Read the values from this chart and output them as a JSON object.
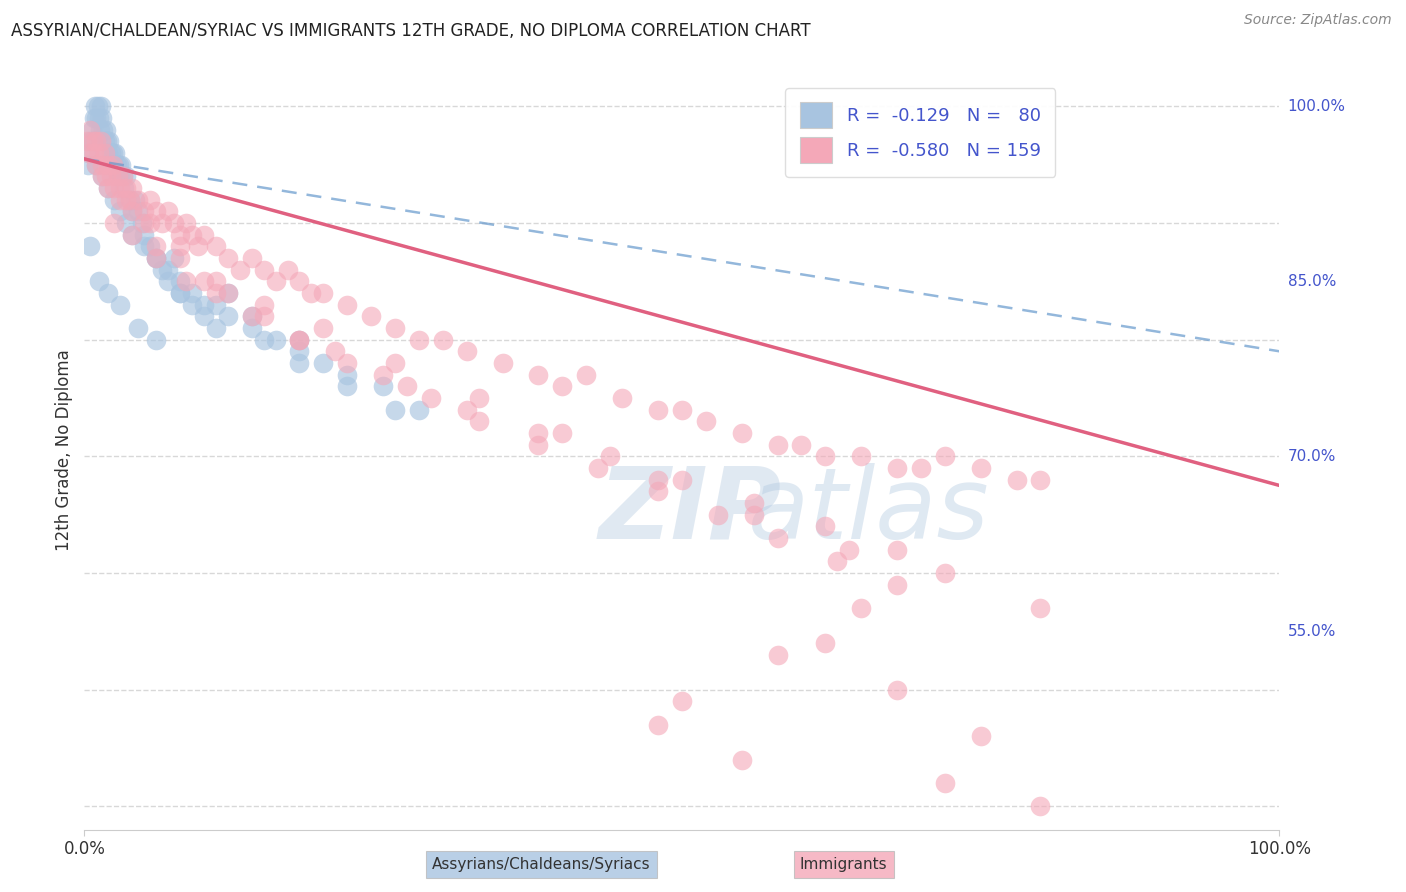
{
  "title": "ASSYRIAN/CHALDEAN/SYRIAC VS IMMIGRANTS 12TH GRADE, NO DIPLOMA CORRELATION CHART",
  "source": "Source: ZipAtlas.com",
  "ylabel": "12th Grade, No Diploma",
  "ylabel_right_ticks": [
    100.0,
    85.0,
    70.0,
    55.0
  ],
  "legend_r1": "R =  -0.129",
  "legend_n1": "N =  80",
  "legend_r2": "R =  -0.580",
  "legend_n2": "N = 159",
  "blue_color": "#a8c4e0",
  "pink_color": "#f4a8b8",
  "trend_blue_color": "#6699cc",
  "trend_pink_color": "#e06080",
  "watermark_zip": "ZIP",
  "watermark_atlas": "atlas",
  "xlim": [
    0,
    100
  ],
  "ylim": [
    38,
    103
  ],
  "background_color": "#ffffff",
  "grid_color": "#d8d8d8",
  "label_color": "#4455cc",
  "blue_scatter_x": [
    0.3,
    0.5,
    0.6,
    0.8,
    0.9,
    1.0,
    1.1,
    1.2,
    1.3,
    1.4,
    1.5,
    1.6,
    1.7,
    1.8,
    1.9,
    2.0,
    2.1,
    2.2,
    2.3,
    2.4,
    2.5,
    2.6,
    2.7,
    2.8,
    2.9,
    3.0,
    3.1,
    3.2,
    3.3,
    3.5,
    3.8,
    4.0,
    4.2,
    4.5,
    4.8,
    5.0,
    5.5,
    6.0,
    6.5,
    7.0,
    7.5,
    8.0,
    9.0,
    10.0,
    11.0,
    12.0,
    14.0,
    16.0,
    18.0,
    20.0,
    22.0,
    25.0,
    28.0,
    0.4,
    0.7,
    1.0,
    1.5,
    2.0,
    2.5,
    3.0,
    3.5,
    4.0,
    5.0,
    6.0,
    7.0,
    8.0,
    9.0,
    10.0,
    12.0,
    15.0,
    18.0,
    22.0,
    26.0,
    0.5,
    1.2,
    2.0,
    3.0,
    4.5,
    6.0,
    8.0,
    11.0,
    14.0,
    18.0
  ],
  "blue_scatter_y": [
    95,
    97,
    98,
    99,
    100,
    99,
    100,
    99,
    98,
    100,
    99,
    98,
    97,
    98,
    97,
    96,
    97,
    96,
    95,
    96,
    95,
    96,
    95,
    94,
    95,
    94,
    95,
    94,
    93,
    94,
    92,
    91,
    92,
    91,
    90,
    89,
    88,
    87,
    86,
    85,
    87,
    84,
    83,
    82,
    81,
    84,
    82,
    80,
    79,
    78,
    77,
    76,
    74,
    96,
    97,
    95,
    94,
    93,
    92,
    91,
    90,
    89,
    88,
    87,
    86,
    85,
    84,
    83,
    82,
    80,
    78,
    76,
    74,
    88,
    85,
    84,
    83,
    81,
    80,
    84,
    83,
    81,
    80
  ],
  "pink_scatter_x": [
    0.2,
    0.4,
    0.5,
    0.7,
    0.8,
    1.0,
    1.2,
    1.4,
    1.5,
    1.7,
    1.8,
    2.0,
    2.2,
    2.4,
    2.5,
    2.8,
    3.0,
    3.2,
    3.5,
    3.8,
    4.0,
    4.5,
    5.0,
    5.5,
    6.0,
    6.5,
    7.0,
    7.5,
    8.0,
    8.5,
    9.0,
    9.5,
    10.0,
    11.0,
    12.0,
    13.0,
    14.0,
    15.0,
    16.0,
    17.0,
    18.0,
    19.0,
    20.0,
    22.0,
    24.0,
    26.0,
    28.0,
    30.0,
    32.0,
    35.0,
    38.0,
    40.0,
    42.0,
    45.0,
    48.0,
    50.0,
    52.0,
    55.0,
    58.0,
    60.0,
    62.0,
    65.0,
    68.0,
    70.0,
    72.0,
    75.0,
    78.0,
    80.0,
    1.0,
    2.0,
    3.0,
    4.0,
    5.0,
    6.0,
    8.0,
    10.0,
    12.0,
    15.0,
    18.0,
    21.0,
    25.0,
    29.0,
    33.0,
    38.0,
    43.0,
    48.0,
    53.0,
    58.0,
    63.0,
    68.0,
    2.5,
    4.0,
    6.0,
    8.5,
    11.0,
    14.0,
    18.0,
    22.0,
    27.0,
    32.0,
    38.0,
    44.0,
    50.0,
    56.0,
    62.0,
    68.0,
    1.5,
    3.5,
    5.5,
    8.0,
    11.0,
    15.0,
    20.0,
    26.0,
    33.0,
    40.0,
    48.0,
    56.0,
    64.0,
    72.0,
    80.0
  ],
  "pink_scatter_y": [
    97,
    96,
    98,
    97,
    96,
    97,
    96,
    97,
    95,
    96,
    94,
    95,
    94,
    95,
    93,
    94,
    93,
    94,
    93,
    92,
    93,
    92,
    91,
    92,
    91,
    90,
    91,
    90,
    89,
    90,
    89,
    88,
    89,
    88,
    87,
    86,
    87,
    86,
    85,
    86,
    85,
    84,
    84,
    83,
    82,
    81,
    80,
    80,
    79,
    78,
    77,
    76,
    77,
    75,
    74,
    74,
    73,
    72,
    71,
    71,
    70,
    70,
    69,
    69,
    70,
    69,
    68,
    68,
    95,
    93,
    92,
    91,
    90,
    88,
    87,
    85,
    84,
    82,
    80,
    79,
    77,
    75,
    73,
    71,
    69,
    67,
    65,
    63,
    61,
    59,
    90,
    89,
    87,
    85,
    84,
    82,
    80,
    78,
    76,
    74,
    72,
    70,
    68,
    66,
    64,
    62,
    94,
    92,
    90,
    88,
    85,
    83,
    81,
    78,
    75,
    72,
    68,
    65,
    62,
    60,
    57
  ],
  "pink_outliers_x": [
    50.0,
    58.0,
    65.0,
    72.0,
    55.0,
    80.0,
    75.0,
    68.0,
    62.0,
    48.0
  ],
  "pink_outliers_y": [
    49.0,
    53.0,
    57.0,
    42.0,
    44.0,
    40.0,
    46.0,
    50.0,
    54.0,
    47.0
  ],
  "blue_trend_x": [
    0,
    100
  ],
  "blue_trend_y": [
    95.5,
    79.0
  ],
  "pink_trend_x": [
    0,
    100
  ],
  "pink_trend_y": [
    95.5,
    67.5
  ]
}
